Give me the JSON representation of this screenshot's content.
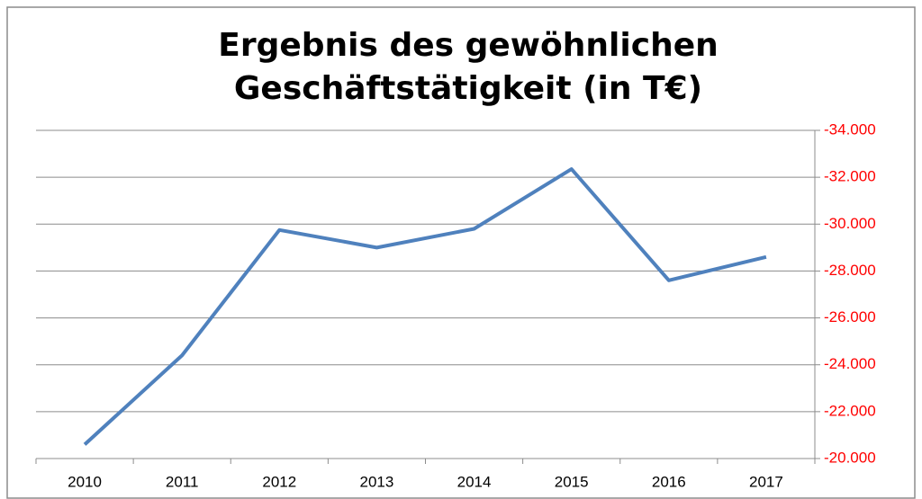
{
  "chart_data": {
    "type": "line",
    "title": [
      "Ergebnis des gewöhnlichen",
      "Geschäftstätigkeit (in T€)"
    ],
    "categories": [
      "2010",
      "2011",
      "2012",
      "2013",
      "2014",
      "2015",
      "2016",
      "2017"
    ],
    "values": [
      -20600,
      -24400,
      -29750,
      -29000,
      -29800,
      -32350,
      -27600,
      -28600
    ],
    "color": "#4f81bd",
    "ylim": [
      -20000,
      -34000
    ],
    "yticks": [
      {
        "value": -20000,
        "label": "-20.000"
      },
      {
        "value": -22000,
        "label": "-22.000"
      },
      {
        "value": -24000,
        "label": "-24.000"
      },
      {
        "value": -26000,
        "label": "-26.000"
      },
      {
        "value": -28000,
        "label": "-28.000"
      },
      {
        "value": -30000,
        "label": "-30.000"
      },
      {
        "value": -32000,
        "label": "-32.000"
      },
      {
        "value": -34000,
        "label": "-34.000"
      }
    ],
    "ytick_color": "#ff0000",
    "y_axis_side": "right",
    "grid": true
  }
}
